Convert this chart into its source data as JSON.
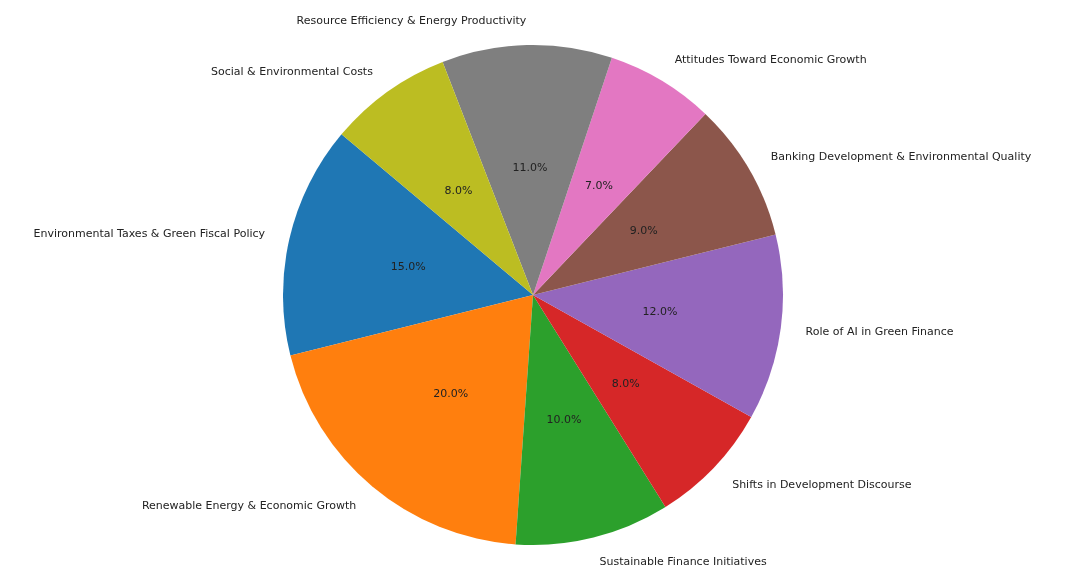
{
  "chart_data": {
    "type": "pie",
    "categories": [
      "Environmental Taxes & Green Fiscal Policy",
      "Renewable Energy & Economic Growth",
      "Sustainable Finance Initiatives",
      "Shifts in Development Discourse",
      "Role of AI in Green Finance",
      "Banking Development & Environmental Quality",
      "Attitudes Toward Economic Growth",
      "Resource Efficiency & Energy Productivity",
      "Social & Environmental Costs"
    ],
    "values": [
      15,
      20,
      10,
      8,
      12,
      9,
      7,
      11,
      8
    ],
    "value_labels": [
      "15.0%",
      "20.0%",
      "10.0%",
      "8.0%",
      "12.0%",
      "9.0%",
      "7.0%",
      "11.0%",
      "8.0%"
    ],
    "colors": [
      "#1f77b4",
      "#ff7f0e",
      "#2ca02c",
      "#d62728",
      "#9467bd",
      "#8c564b",
      "#e377c2",
      "#7f7f7f",
      "#bcbd22"
    ],
    "legend": false
  }
}
